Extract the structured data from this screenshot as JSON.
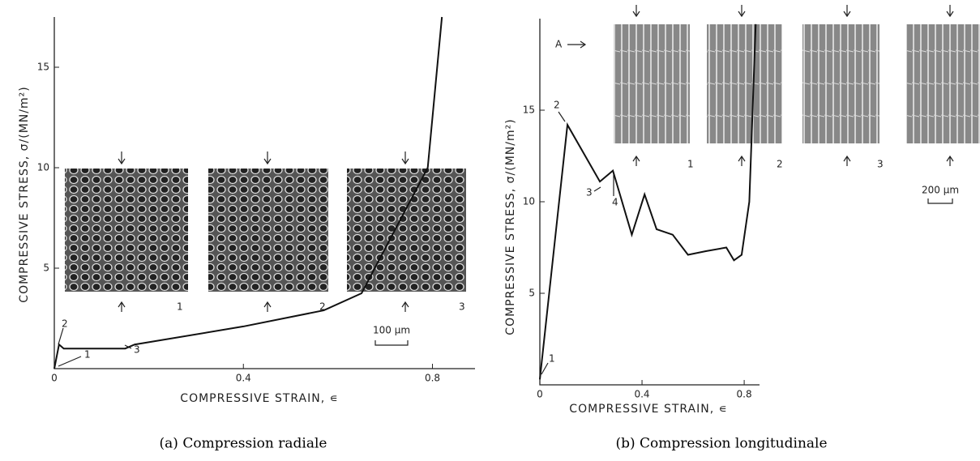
{
  "chart_data": [
    {
      "type": "line",
      "caption": "(a) Compression radiale",
      "x_label": "COMPRESSIVE STRAIN, ∊",
      "y_label": "COMPRESSIVE STRESS, σ/(MN/m²)",
      "x": [
        0,
        0.01,
        0.02,
        0.15,
        0.17,
        0.4,
        0.57,
        0.65,
        0.79,
        0.82
      ],
      "series": [
        {
          "color": "#111",
          "values": [
            0,
            1.2,
            1.0,
            1.0,
            1.2,
            2.1,
            2.9,
            3.75,
            10,
            17.5
          ]
        }
      ],
      "xlim": [
        0,
        0.89
      ],
      "ylim": [
        0,
        17.5
      ],
      "xticks": [
        0,
        0.4,
        0.8
      ],
      "yticks": [
        5,
        10,
        15
      ],
      "annotations": [
        "1",
        "2",
        "3"
      ],
      "inset_labels": [
        "1",
        "2",
        "3"
      ],
      "scale_bar": "100 µm"
    },
    {
      "type": "line",
      "caption": "(b) Compression longitudinale",
      "x_label": "COMPRESSIVE STRAIN, ∊",
      "y_label": "COMPRESSIVE STRESS, σ/(MN/m²)",
      "x": [
        0,
        0.108,
        0.235,
        0.286,
        0.36,
        0.41,
        0.457,
        0.52,
        0.58,
        0.65,
        0.73,
        0.76,
        0.79,
        0.82,
        0.845
      ],
      "series": [
        {
          "color": "#111",
          "values": [
            0.3,
            14.2,
            11.1,
            11.7,
            8.2,
            10.4,
            8.5,
            8.2,
            7.1,
            7.3,
            7.5,
            6.8,
            7.1,
            10,
            19.7
          ]
        }
      ],
      "xlim": [
        0,
        0.86
      ],
      "ylim": [
        0,
        20
      ],
      "xticks": [
        0,
        0.4,
        0.8
      ],
      "yticks": [
        5,
        10,
        15
      ],
      "annotations": [
        "1",
        "2",
        "3",
        "4"
      ],
      "inset_labels": [
        "1",
        "2",
        "3"
      ],
      "scale_bar": "200 µm",
      "marker": "A"
    }
  ]
}
